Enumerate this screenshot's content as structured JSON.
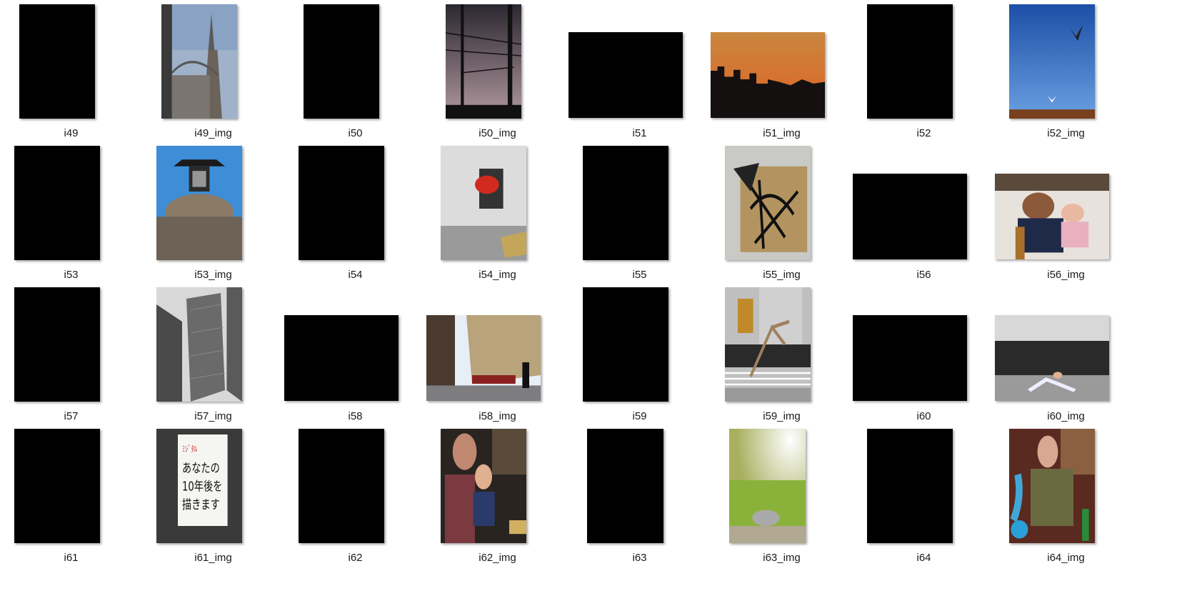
{
  "files": [
    {
      "label": "i49",
      "kind": "heatmap"
    },
    {
      "label": "i49_img",
      "kind": "photo",
      "subject": "clock-tower-building"
    },
    {
      "label": "i50",
      "kind": "heatmap"
    },
    {
      "label": "i50_img",
      "kind": "photo",
      "subject": "utility-poles-dusk"
    },
    {
      "label": "i51",
      "kind": "heatmap"
    },
    {
      "label": "i51_img",
      "kind": "photo",
      "subject": "city-skyline-sunset"
    },
    {
      "label": "i52",
      "kind": "heatmap"
    },
    {
      "label": "i52_img",
      "kind": "photo",
      "subject": "seagulls-blue-sky"
    },
    {
      "label": "i53",
      "kind": "heatmap"
    },
    {
      "label": "i53_img",
      "kind": "photo",
      "subject": "stone-lantern-pigeons"
    },
    {
      "label": "i54",
      "kind": "heatmap"
    },
    {
      "label": "i54_img",
      "kind": "photo",
      "subject": "red-lantern-wall"
    },
    {
      "label": "i55",
      "kind": "heatmap"
    },
    {
      "label": "i55_img",
      "kind": "photo",
      "subject": "graffiti-panel"
    },
    {
      "label": "i56",
      "kind": "heatmap"
    },
    {
      "label": "i56_img",
      "kind": "photo",
      "subject": "woman-with-baby"
    },
    {
      "label": "i57",
      "kind": "heatmap"
    },
    {
      "label": "i57_img",
      "kind": "photo",
      "subject": "skyscrapers-bw"
    },
    {
      "label": "i58",
      "kind": "heatmap"
    },
    {
      "label": "i58_img",
      "kind": "photo",
      "subject": "street-with-cars"
    },
    {
      "label": "i59",
      "kind": "heatmap"
    },
    {
      "label": "i59_img",
      "kind": "photo",
      "subject": "street-performer-crowd"
    },
    {
      "label": "i60",
      "kind": "heatmap"
    },
    {
      "label": "i60_img",
      "kind": "photo",
      "subject": "breakdancer-crowd"
    },
    {
      "label": "i61",
      "kind": "heatmap"
    },
    {
      "label": "i61_img",
      "kind": "photo",
      "subject": "handwritten-sign",
      "sign_text": [
        "あなたの",
        "10年後を",
        "描きます"
      ]
    },
    {
      "label": "i62",
      "kind": "heatmap"
    },
    {
      "label": "i62_img",
      "kind": "photo",
      "subject": "mother-and-child"
    },
    {
      "label": "i63",
      "kind": "heatmap"
    },
    {
      "label": "i63_img",
      "kind": "photo",
      "subject": "sunny-park-cat"
    },
    {
      "label": "i64",
      "kind": "heatmap"
    },
    {
      "label": "i64_img",
      "kind": "photo",
      "subject": "man-with-hookah"
    }
  ]
}
